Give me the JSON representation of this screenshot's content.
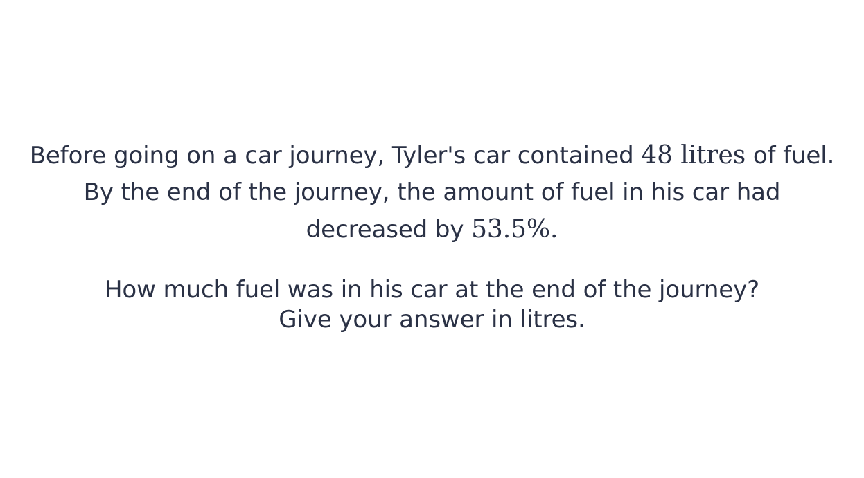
{
  "problem": {
    "text_before_amount": "Before going on a car journey, Tyler's car contained ",
    "amount_expr": "48 litres",
    "text_after_amount": " of fuel. By the end of the journey, the amount of fuel in his car had decreased by ",
    "percent_expr": "53.5%",
    "end_punct": "."
  },
  "question": {
    "line1": "How much fuel was in his car at the end of the journey?",
    "line2": "Give your answer in litres."
  },
  "colors": {
    "text": "#2a3145",
    "background": "#ffffff"
  }
}
